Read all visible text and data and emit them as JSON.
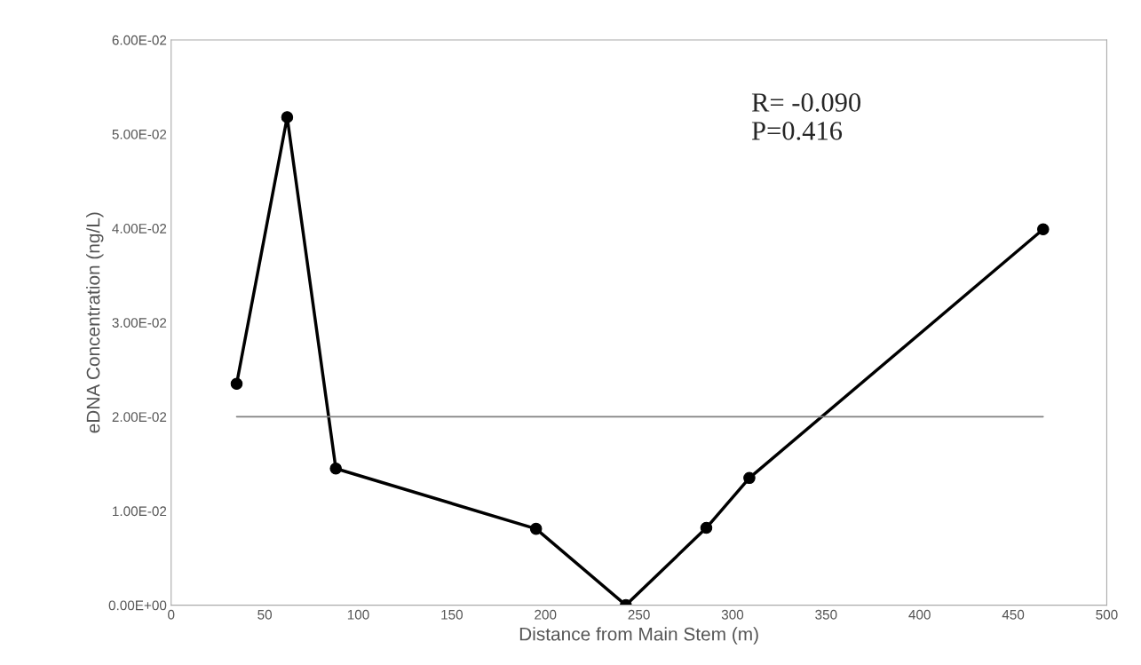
{
  "chart_data": {
    "type": "line",
    "xlabel": "Distance from Main Stem (m)",
    "ylabel": "eDNA Concentration (ng/L)",
    "series": [
      {
        "x": [
          35,
          62,
          88,
          195,
          243,
          286,
          309,
          466
        ],
        "values": [
          0.0235,
          0.0518,
          0.0145,
          0.0081,
          0.0,
          0.0082,
          0.0135,
          0.0399
        ],
        "color": "#000000",
        "marker": "circle"
      },
      {
        "x": [
          35,
          466
        ],
        "values": [
          0.02,
          0.02
        ],
        "color": "#808080",
        "marker": "none"
      }
    ],
    "xlim": [
      0,
      500
    ],
    "xticks": [
      0,
      50,
      100,
      150,
      200,
      250,
      300,
      350,
      400,
      450,
      500
    ],
    "ylim": [
      0,
      0.06
    ],
    "yticks": [
      {
        "value": 0,
        "label": "0.00E+00"
      },
      {
        "value": 0.01,
        "label": "1.00E-02"
      },
      {
        "value": 0.02,
        "label": "2.00E-02"
      },
      {
        "value": 0.03,
        "label": "3.00E-02"
      },
      {
        "value": 0.04,
        "label": "4.00E-02"
      },
      {
        "value": 0.05,
        "label": "5.00E-02"
      },
      {
        "value": 0.06,
        "label": "6.00E-02"
      }
    ],
    "annotations": [
      "R= -0.090\nP=0.416"
    ],
    "grid": false
  }
}
